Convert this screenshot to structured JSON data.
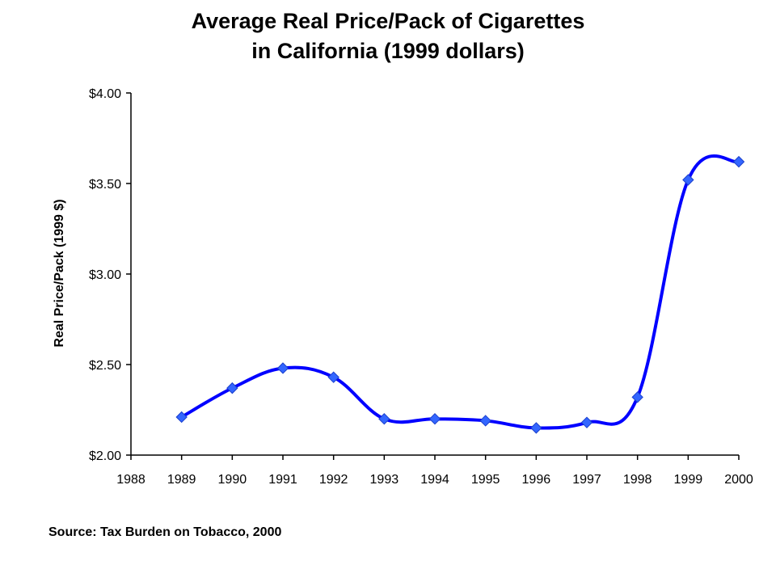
{
  "chart_data": {
    "type": "line",
    "title_line1": "Average Real Price/Pack of Cigarettes",
    "title_line2": "in California (1999 dollars)",
    "ylabel": "Real Price/Pack (1999 $)",
    "xlabel": "",
    "x_ticks": [
      "1988",
      "1989",
      "1990",
      "1991",
      "1992",
      "1993",
      "1994",
      "1995",
      "1996",
      "1997",
      "1998",
      "1999",
      "2000"
    ],
    "y_ticks": [
      "$2.00",
      "$2.50",
      "$3.00",
      "$3.50",
      "$4.00"
    ],
    "ylim": [
      2.0,
      4.0
    ],
    "xlim": [
      1988,
      2000
    ],
    "series": [
      {
        "x": [
          1989,
          1990,
          1991,
          1992,
          1993,
          1994,
          1995,
          1996,
          1997,
          1998,
          1999,
          2000
        ],
        "values": [
          2.21,
          2.37,
          2.48,
          2.43,
          2.2,
          2.2,
          2.19,
          2.15,
          2.18,
          2.32,
          3.52,
          3.62
        ]
      }
    ],
    "line_color": "#0000ff",
    "marker_color": "#3366ff",
    "marker": "diamond",
    "grid": false,
    "source": "Source: Tax Burden on Tobacco, 2000"
  }
}
